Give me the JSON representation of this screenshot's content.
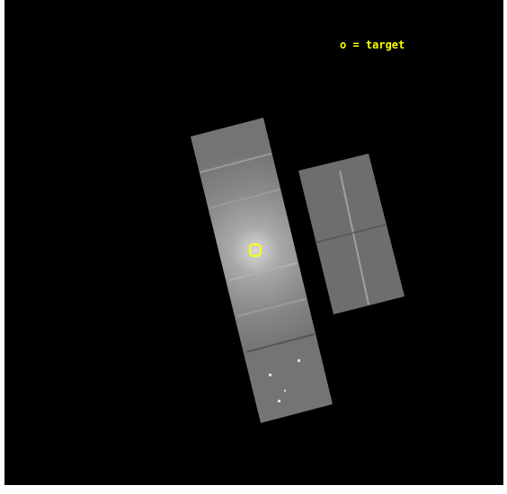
{
  "legend": {
    "text": "o = target"
  }
}
